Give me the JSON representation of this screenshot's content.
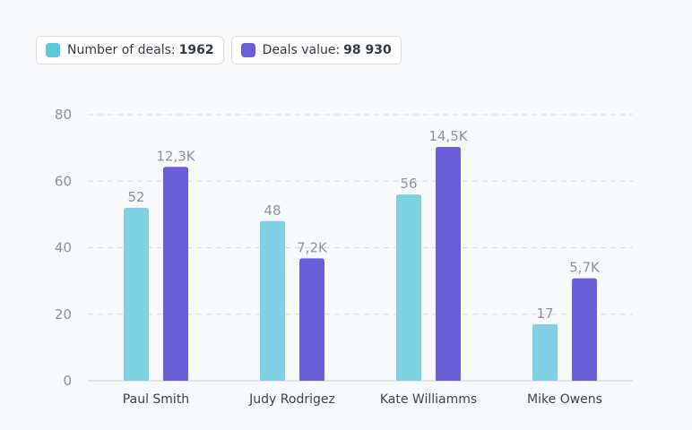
{
  "legend": [
    {
      "label": "Number of deals:",
      "value": "1962",
      "color": "#5ec8dc"
    },
    {
      "label": "Deals value:",
      "value": "98 930",
      "color": "#6a5fd8"
    }
  ],
  "colors": {
    "deals_bar": "#7dd1e0",
    "value_bar": "#6a5fd8",
    "grid": "#d7dae0",
    "axis": "#c9ccd3"
  },
  "chart_data": {
    "type": "bar",
    "categories": [
      "Paul Smith",
      "Judy Rodrigez",
      "Kate Williamms",
      "Mike Owens"
    ],
    "series": [
      {
        "name": "Number of deals",
        "values": [
          52,
          48,
          56,
          17
        ],
        "labels": [
          "52",
          "48",
          "56",
          "17"
        ]
      },
      {
        "name": "Deals value",
        "values": [
          12300,
          7200,
          14500,
          5700
        ],
        "labels": [
          "12,3K",
          "7,2K",
          "14,5K",
          "5,7K"
        ],
        "plotted_on_left_axis": [
          64.3,
          36.8,
          70.3,
          30.8
        ]
      }
    ],
    "yticks": [
      "0",
      "20",
      "40",
      "60",
      "80"
    ],
    "ylim": [
      0,
      80
    ],
    "grid": true,
    "legend_position": "top-left"
  }
}
